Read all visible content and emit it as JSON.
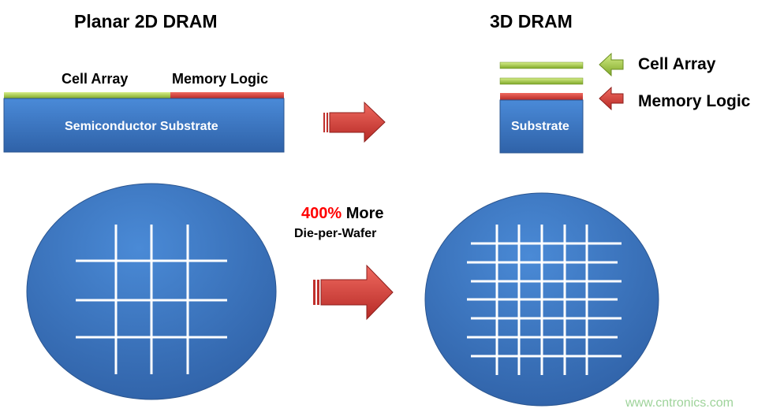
{
  "left": {
    "title": "Planar 2D DRAM",
    "cell_array": "Cell Array",
    "memory_logic": "Memory Logic",
    "substrate": "Semiconductor Substrate"
  },
  "right": {
    "title": "3D DRAM",
    "cell_array": "Cell Array",
    "memory_logic": "Memory Logic",
    "substrate": "Substrate"
  },
  "middle": {
    "percent": "400%",
    "more": "More",
    "line2": "Die-per-Wafer"
  },
  "watermark": "www.cntronics.com",
  "colors": {
    "blue": "#3a78c4",
    "green": "#9acb3c",
    "red": "#d8403c",
    "highlight": "#ff0000"
  }
}
